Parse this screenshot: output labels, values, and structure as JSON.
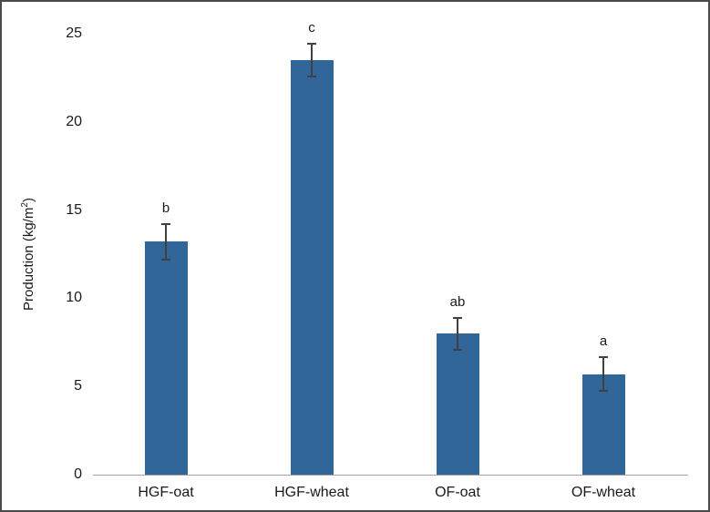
{
  "frame": {
    "background": "#ffffff",
    "border_color": "#4a4a4a"
  },
  "chart_data": {
    "type": "bar",
    "title": "",
    "xlabel": "",
    "ylabel": "Production (kg/m²)",
    "ylabel_parts": {
      "prefix": "Production (kg/m",
      "sup": "2",
      "suffix": ")"
    },
    "categories": [
      "HGF-oat",
      "HGF-wheat",
      "OF-oat",
      "OF-wheat"
    ],
    "values": [
      13.2,
      23.5,
      8.0,
      5.7
    ],
    "error_bars": [
      1.0,
      0.95,
      0.9,
      0.95
    ],
    "significance_labels": [
      "b",
      "c",
      "ab",
      "a"
    ],
    "ylim": [
      0,
      25
    ],
    "yticks": [
      0,
      5,
      10,
      15,
      20,
      25
    ],
    "grid": false,
    "legend": "none",
    "bar_color": "#31669a",
    "error_bar_color": "#404040",
    "axis_line_color": "#a3a3a3",
    "text_color": "#1a1a1a"
  }
}
